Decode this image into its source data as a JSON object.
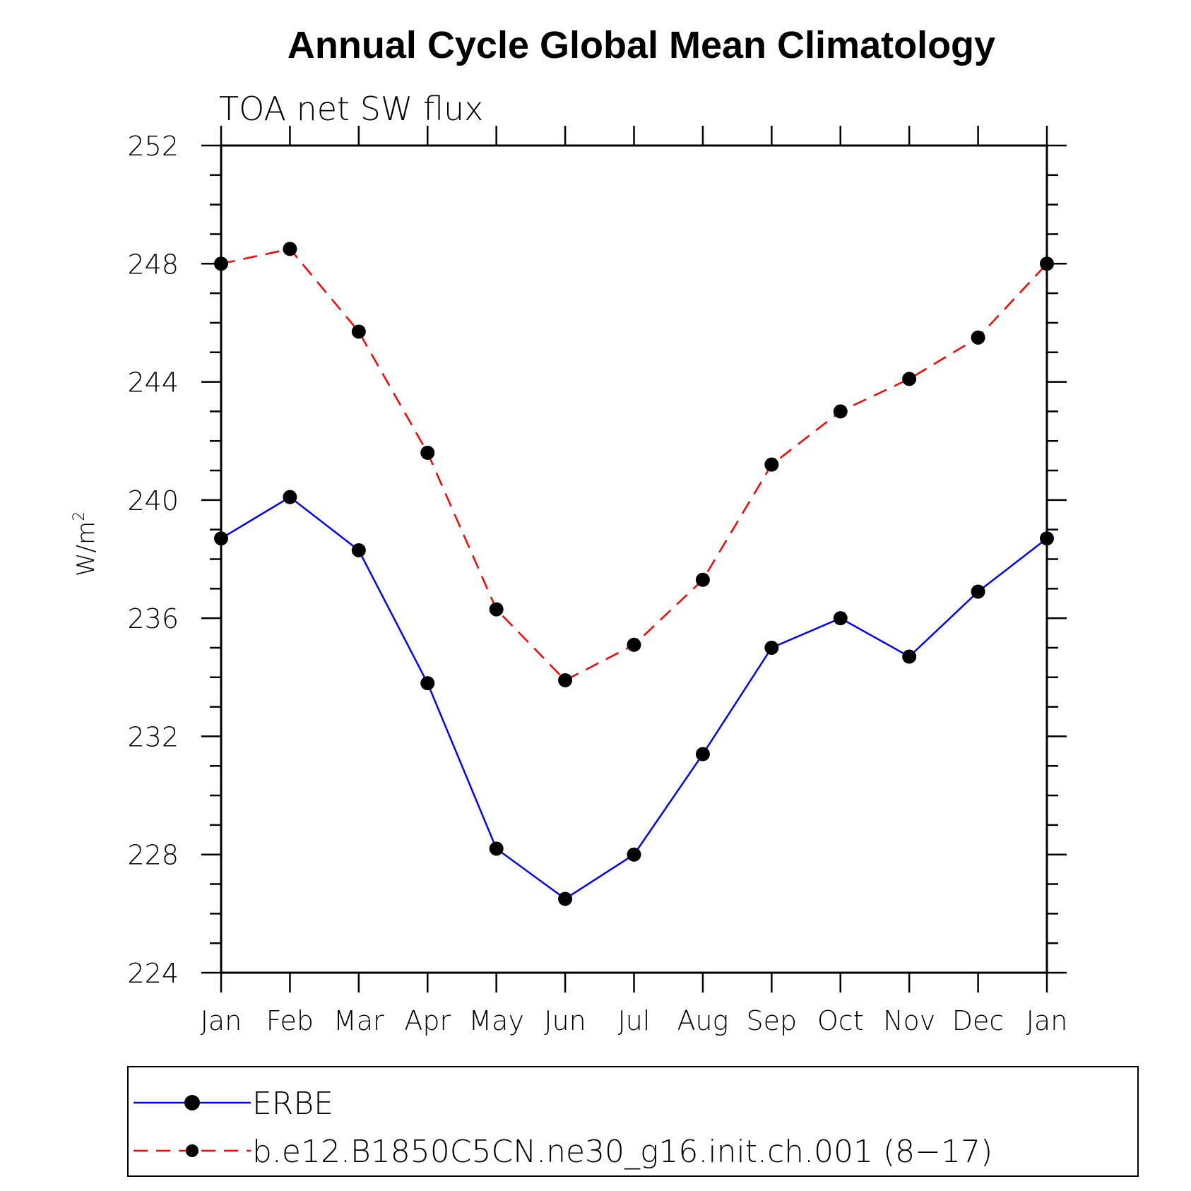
{
  "chart_data": {
    "type": "line",
    "title": "Annual Cycle Global Mean Climatology",
    "subtitle": "TOA net SW flux",
    "ylabel": "W/m",
    "ylabel_sup": "2",
    "xlabel": "",
    "categories": [
      "Jan",
      "Feb",
      "Mar",
      "Apr",
      "May",
      "Jun",
      "Jul",
      "Aug",
      "Sep",
      "Oct",
      "Nov",
      "Dec",
      "Jan"
    ],
    "ylim": [
      224,
      252
    ],
    "yticks": [
      224,
      228,
      232,
      236,
      240,
      244,
      248,
      252
    ],
    "y_minor_step": 1,
    "legend_position": "bottom",
    "series": [
      {
        "name": "ERBE",
        "color": "#0000ff",
        "dash": "solid",
        "values": [
          238.7,
          240.1,
          238.3,
          233.8,
          228.2,
          226.5,
          228.0,
          231.4,
          235.0,
          236.0,
          234.7,
          236.9,
          238.7
        ]
      },
      {
        "name": "b.e12.B1850C5CN.ne30_g16.init.ch.001 (8−17)",
        "color": "#ff0000",
        "dash": "dashed",
        "values": [
          248.0,
          248.5,
          245.7,
          241.6,
          236.3,
          233.9,
          235.1,
          237.3,
          241.2,
          243.0,
          244.1,
          245.5,
          248.0
        ]
      }
    ]
  }
}
